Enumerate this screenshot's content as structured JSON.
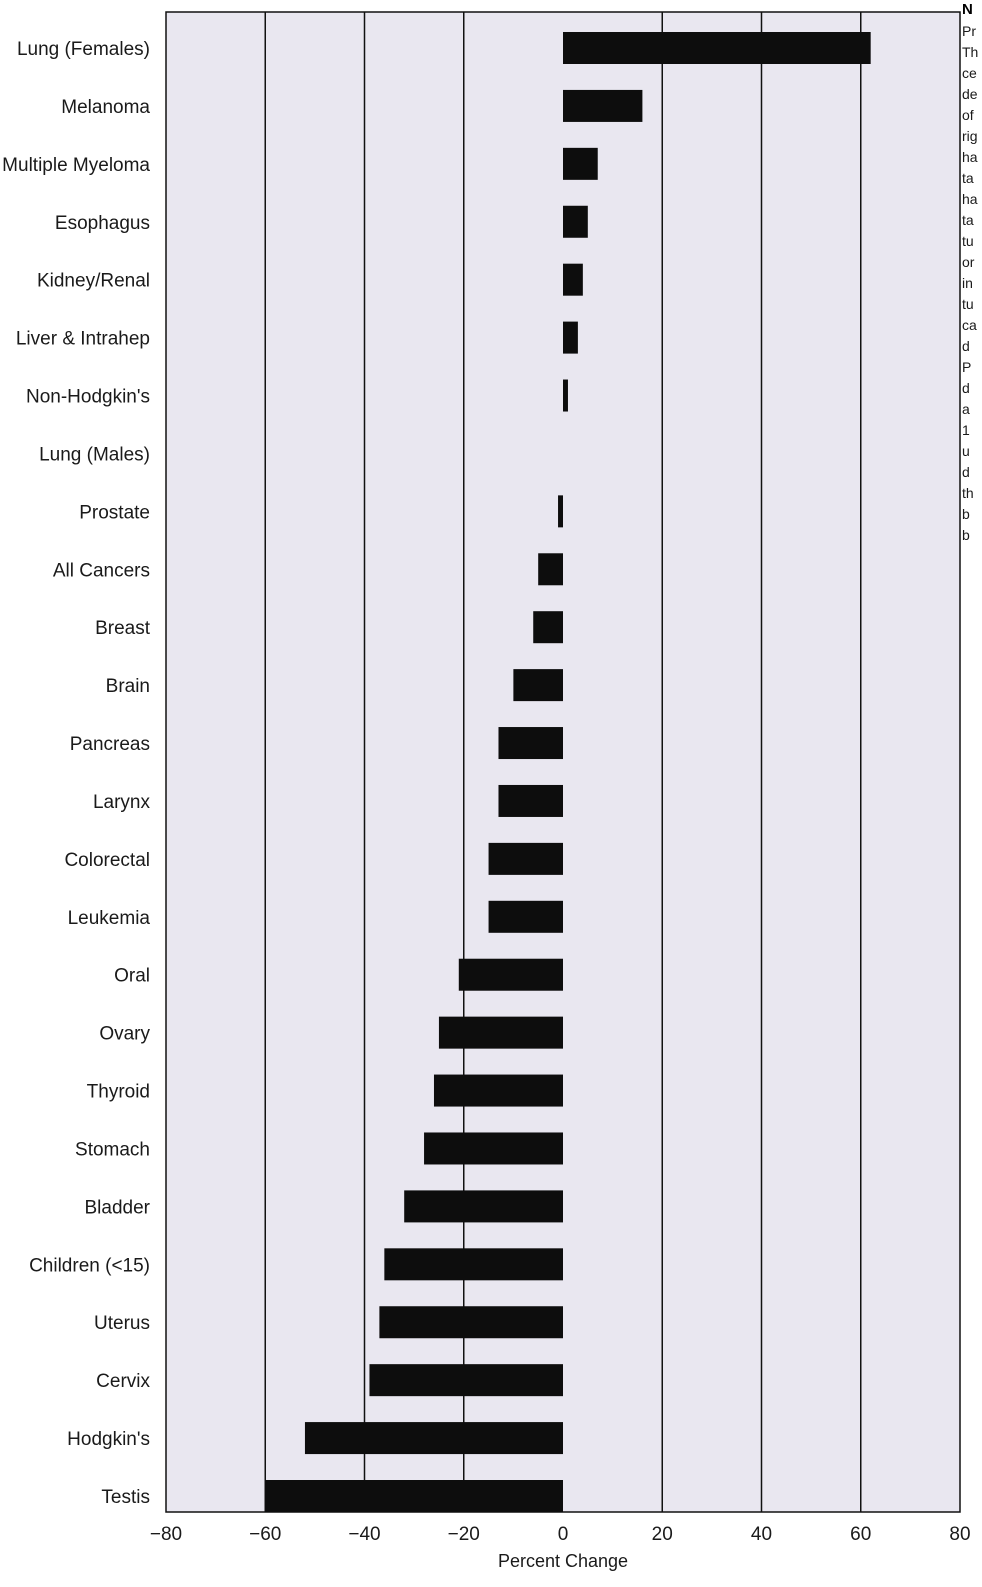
{
  "chart_data": {
    "type": "bar",
    "orientation": "horizontal",
    "title": "",
    "xlabel": "Percent Change",
    "ylabel": "",
    "xlim": [
      -80,
      80
    ],
    "xticks": [
      -80,
      -60,
      -40,
      -20,
      0,
      20,
      40,
      60,
      80
    ],
    "xtick_labels": [
      "−80",
      "−60",
      "−40",
      "−20",
      "0",
      "20",
      "40",
      "60",
      "80"
    ],
    "grid": "vertical",
    "legend": "none",
    "categories": [
      "Lung (Females)",
      "Melanoma",
      "Multiple Myeloma",
      "Esophagus",
      "Kidney/Renal",
      "Liver & Intrahep",
      "Non-Hodgkin's",
      "Lung (Males)",
      "Prostate",
      "All Cancers",
      "Breast",
      "Brain",
      "Pancreas",
      "Larynx",
      "Colorectal",
      "Leukemia",
      "Oral",
      "Ovary",
      "Thyroid",
      "Stomach",
      "Bladder",
      "Children (<15)",
      "Uterus",
      "Cervix",
      "Hodgkin's",
      "Testis"
    ],
    "values": [
      62,
      16,
      7,
      5,
      4,
      3,
      1,
      0,
      -1,
      -5,
      -6,
      -10,
      -13,
      -13,
      -15,
      -15,
      -21,
      -25,
      -26,
      -28,
      -32,
      -36,
      -37,
      -39,
      -52,
      -60
    ]
  },
  "side_text": {
    "heading": "N",
    "lines": [
      "Pr",
      "Th",
      "ce",
      "de",
      "of",
      "rig",
      "ha",
      "ta",
      "ha",
      "ta",
      "tu",
      "or",
      "in",
      "tu",
      "ca",
      "d",
      "P",
      "d",
      "a",
      "1",
      "u",
      "d",
      "th",
      "b",
      "b"
    ]
  },
  "colors": {
    "plot_background": "#e9e7f0",
    "bar": "#0d0d0d",
    "gridline": "#111111"
  }
}
